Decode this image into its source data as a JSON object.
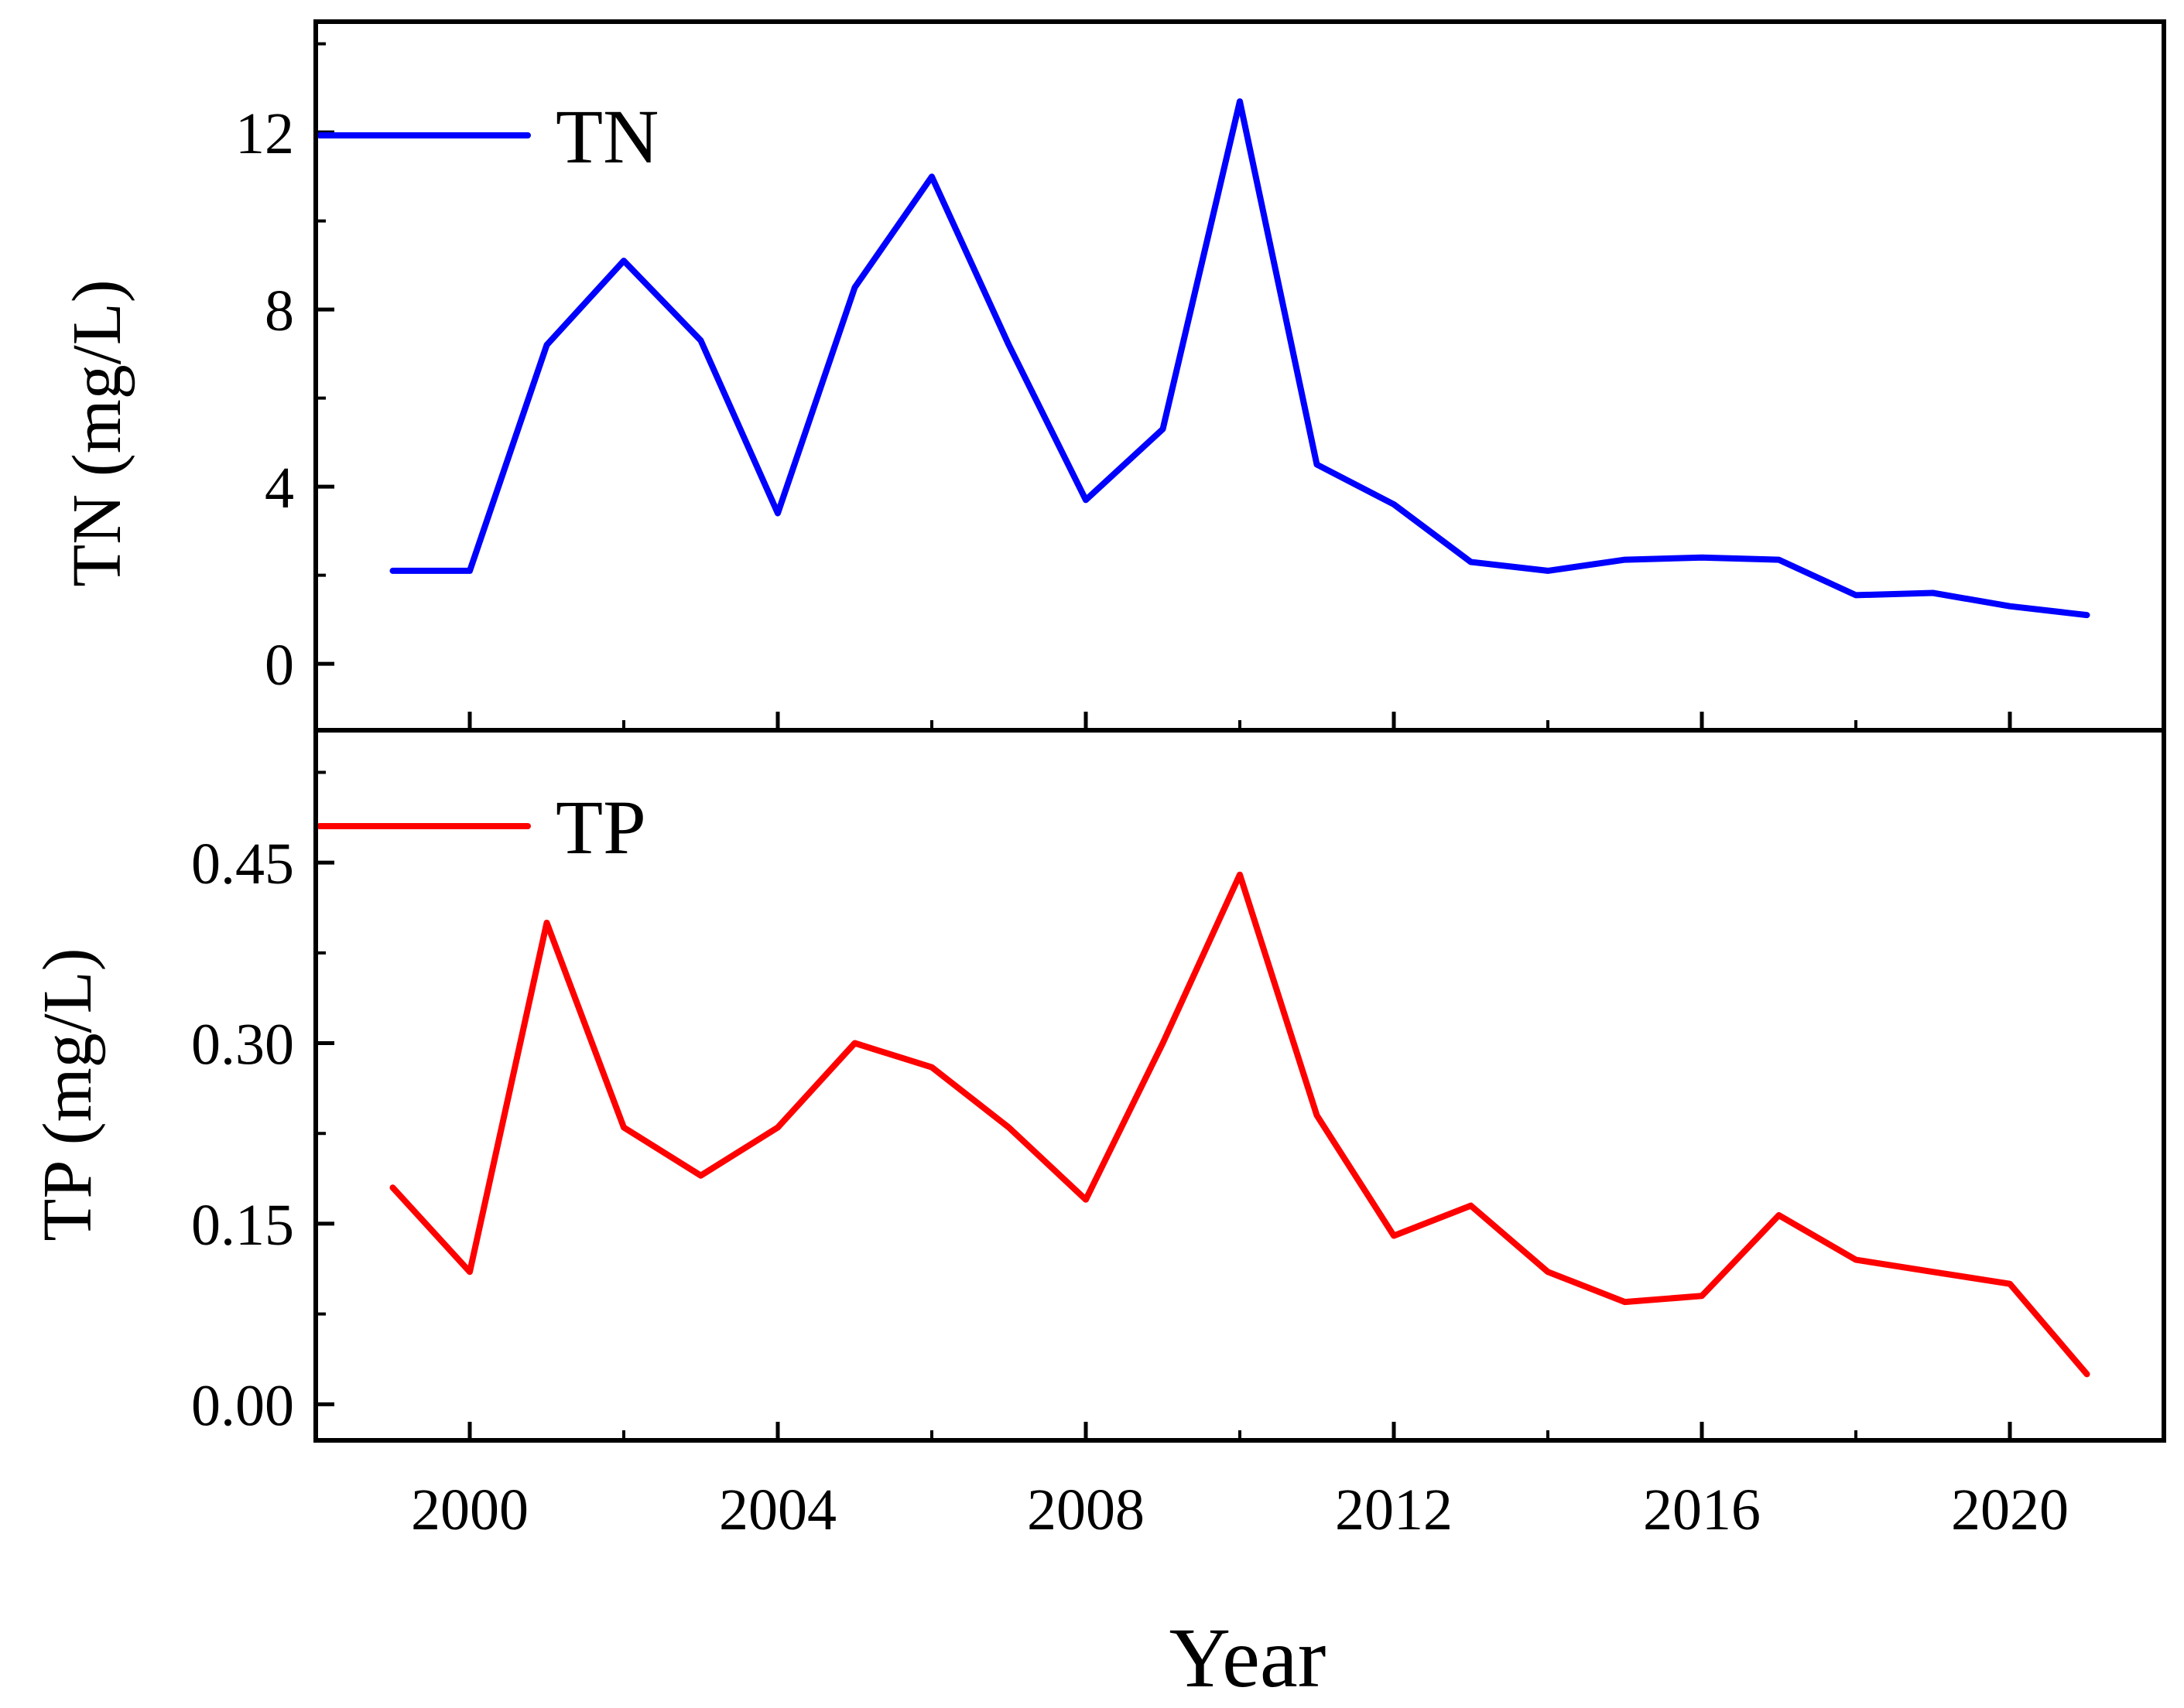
{
  "chart_data": [
    {
      "type": "line",
      "title": "",
      "ylabel": "TN (mg/L)",
      "xlabel": "",
      "ylim": [
        -1.5,
        14.5
      ],
      "yticks": [
        0,
        4,
        8,
        12
      ],
      "yticklabels": [
        "0",
        "4",
        "8",
        "12"
      ],
      "legend": "top-left",
      "series": [
        {
          "name": "TN",
          "color": "#0000ff",
          "x": [
            1999,
            2000,
            2001,
            2002,
            2003,
            2004,
            2005,
            2006,
            2007,
            2008,
            2009,
            2010,
            2011,
            2012,
            2013,
            2014,
            2015,
            2016,
            2017,
            2018,
            2019,
            2020,
            2021
          ],
          "values": [
            2.1,
            2.1,
            7.2,
            9.1,
            7.3,
            3.4,
            8.5,
            11.0,
            7.2,
            3.7,
            5.3,
            12.7,
            4.5,
            3.6,
            2.3,
            2.1,
            2.35,
            2.4,
            2.35,
            1.55,
            1.6,
            1.3,
            1.1
          ]
        }
      ]
    },
    {
      "type": "line",
      "title": "",
      "ylabel": "TP (mg/L)",
      "xlabel": "Year",
      "ylim": [
        -0.03,
        0.56
      ],
      "xlim": [
        1998,
        2022
      ],
      "yticks": [
        0.0,
        0.15,
        0.3,
        0.45
      ],
      "yticklabels": [
        "0.00",
        "0.15",
        "0.30",
        "0.45"
      ],
      "xticks": [
        2000,
        2004,
        2008,
        2012,
        2016,
        2020
      ],
      "xticklabels": [
        "2000",
        "2004",
        "2008",
        "2012",
        "2016",
        "2020"
      ],
      "legend": "top-left",
      "series": [
        {
          "name": "TP",
          "color": "#ff0000",
          "x": [
            1999,
            2000,
            2001,
            2002,
            2003,
            2004,
            2005,
            2006,
            2007,
            2008,
            2009,
            2010,
            2011,
            2012,
            2013,
            2014,
            2015,
            2016,
            2017,
            2018,
            2019,
            2020,
            2021
          ],
          "values": [
            0.18,
            0.11,
            0.4,
            0.23,
            0.19,
            0.23,
            0.3,
            0.28,
            0.23,
            0.17,
            0.3,
            0.44,
            0.24,
            0.14,
            0.165,
            0.11,
            0.085,
            0.09,
            0.157,
            0.12,
            0.11,
            0.1,
            0.025
          ]
        }
      ]
    }
  ]
}
